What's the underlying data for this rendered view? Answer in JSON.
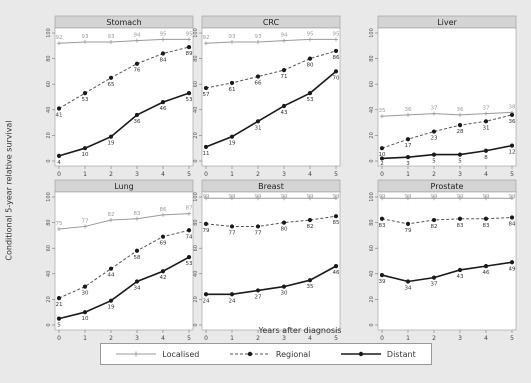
{
  "y_axis_title": "Conditional 5-year relative survival",
  "x_axis_title": "Years after diagnosis",
  "legend": [
    {
      "label": "Localised",
      "stage": "localised"
    },
    {
      "label": "Regional",
      "stage": "regional"
    },
    {
      "label": "Distant",
      "stage": "distant"
    }
  ],
  "styles": {
    "localised": {
      "color": "#9a9a9a",
      "width": 1.0,
      "marker": "plus",
      "label_color": "#9a9a9a"
    },
    "regional": {
      "color": "#555555",
      "width": 1.0,
      "marker": "dot",
      "dash": "3,2",
      "label_color": "#333333"
    },
    "distant": {
      "color": "#1a1a1a",
      "width": 1.6,
      "marker": "dot",
      "label_color": "#333333"
    }
  },
  "chart_data": [
    {
      "type": "line",
      "title": "Stomach",
      "x": [
        0,
        1,
        2,
        3,
        4,
        5
      ],
      "xticks": [
        0,
        1,
        2,
        3,
        4,
        5
      ],
      "ylim": [
        0,
        100
      ],
      "yticks": [
        0,
        20,
        40,
        60,
        80,
        100
      ],
      "series": [
        {
          "name": "Localised",
          "stage": "localised",
          "values": [
            92,
            93,
            93,
            94,
            95,
            95
          ]
        },
        {
          "name": "Regional",
          "stage": "regional",
          "values": [
            41,
            53,
            65,
            76,
            84,
            89
          ]
        },
        {
          "name": "Distant",
          "stage": "distant",
          "values": [
            4,
            10,
            19,
            36,
            46,
            53
          ]
        }
      ]
    },
    {
      "type": "line",
      "title": "CRC",
      "x": [
        0,
        1,
        2,
        3,
        4,
        5
      ],
      "xticks": [
        0,
        1,
        2,
        3,
        4,
        5
      ],
      "ylim": [
        0,
        100
      ],
      "yticks": [
        0,
        20,
        40,
        60,
        80,
        100
      ],
      "series": [
        {
          "name": "Localised",
          "stage": "localised",
          "values": [
            92,
            93,
            93,
            94,
            95,
            95
          ]
        },
        {
          "name": "Regional",
          "stage": "regional",
          "values": [
            57,
            61,
            66,
            71,
            80,
            86
          ]
        },
        {
          "name": "Distant",
          "stage": "distant",
          "values": [
            11,
            19,
            31,
            43,
            53,
            70
          ]
        }
      ]
    },
    {
      "type": "line",
      "title": "Liver",
      "x": [
        0,
        1,
        2,
        3,
        4,
        5
      ],
      "xticks": [
        0,
        1,
        2,
        3,
        4,
        5
      ],
      "ylim": [
        0,
        100
      ],
      "yticks": [
        0,
        20,
        40,
        60,
        80,
        100
      ],
      "series": [
        {
          "name": "Localised",
          "stage": "localised",
          "values": [
            35,
            36,
            37,
            36,
            37,
            38
          ]
        },
        {
          "name": "Regional",
          "stage": "regional",
          "values": [
            10,
            17,
            23,
            28,
            31,
            36
          ]
        },
        {
          "name": "Distant",
          "stage": "distant",
          "values": [
            2,
            3,
            5,
            5,
            8,
            12
          ]
        }
      ]
    },
    {
      "type": "line",
      "title": "Lung",
      "x": [
        0,
        1,
        2,
        3,
        4,
        5
      ],
      "xticks": [
        0,
        1,
        2,
        3,
        4,
        5
      ],
      "ylim": [
        0,
        100
      ],
      "yticks": [
        0,
        20,
        40,
        60,
        80,
        100
      ],
      "series": [
        {
          "name": "Localised",
          "stage": "localised",
          "values": [
            75,
            77,
            82,
            83,
            86,
            87
          ]
        },
        {
          "name": "Regional",
          "stage": "regional",
          "values": [
            21,
            30,
            44,
            58,
            69,
            74
          ]
        },
        {
          "name": "Distant",
          "stage": "distant",
          "values": [
            5,
            10,
            19,
            34,
            42,
            53
          ]
        }
      ]
    },
    {
      "type": "line",
      "title": "Breast",
      "x": [
        0,
        1,
        2,
        3,
        4,
        5
      ],
      "xticks": [
        0,
        1,
        2,
        3,
        4,
        5
      ],
      "ylim": [
        0,
        100
      ],
      "yticks": [
        0,
        20,
        40,
        60,
        80,
        100
      ],
      "series": [
        {
          "name": "Localised",
          "stage": "localised",
          "values": [
            99,
            99,
            99,
            99,
            99,
            99
          ]
        },
        {
          "name": "Regional",
          "stage": "regional",
          "values": [
            79,
            77,
            77,
            80,
            82,
            85
          ]
        },
        {
          "name": "Distant",
          "stage": "distant",
          "values": [
            24,
            24,
            27,
            30,
            35,
            46
          ]
        }
      ]
    },
    {
      "type": "line",
      "title": "Prostate",
      "x": [
        0,
        1,
        2,
        3,
        4,
        5
      ],
      "xticks": [
        0,
        1,
        2,
        3,
        4,
        5
      ],
      "ylim": [
        0,
        100
      ],
      "yticks": [
        0,
        20,
        40,
        60,
        80,
        100
      ],
      "series": [
        {
          "name": "Localised",
          "stage": "localised",
          "values": [
            99,
            99,
            99,
            99,
            99,
            99
          ]
        },
        {
          "name": "Regional",
          "stage": "regional",
          "values": [
            83,
            79,
            82,
            83,
            83,
            84
          ]
        },
        {
          "name": "Distant",
          "stage": "distant",
          "values": [
            39,
            34,
            37,
            43,
            46,
            49
          ]
        }
      ]
    }
  ]
}
